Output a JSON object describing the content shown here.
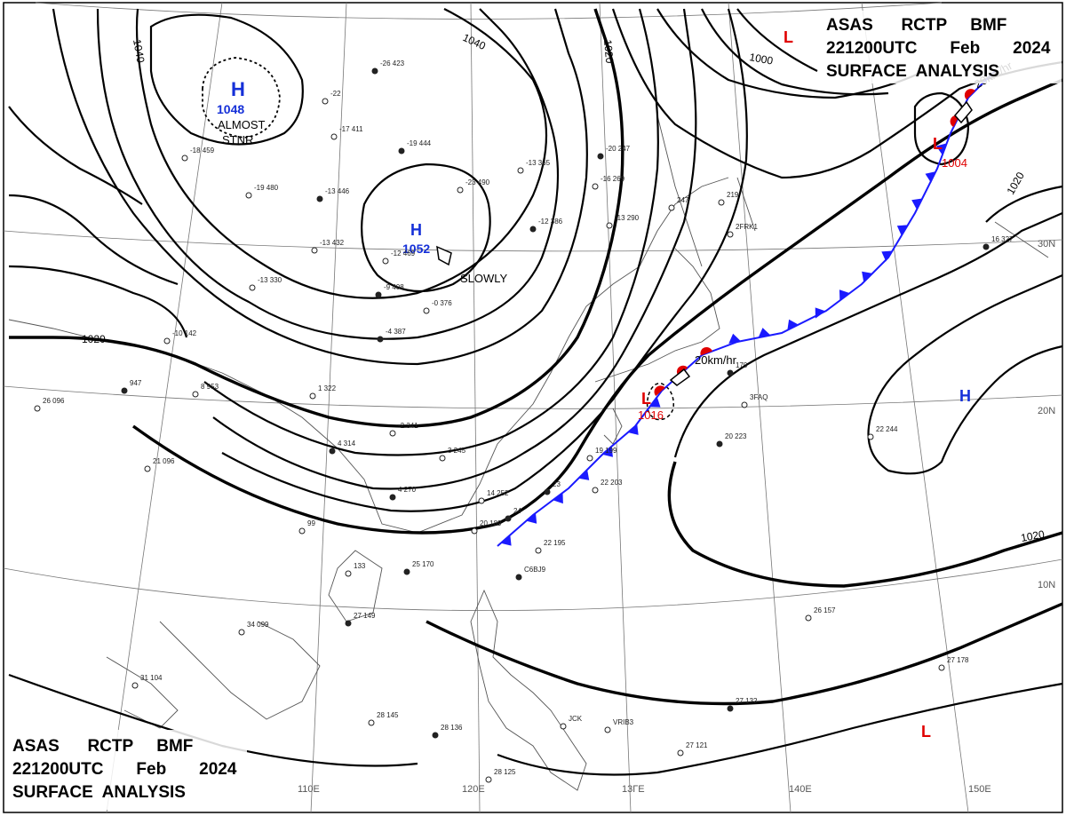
{
  "header": {
    "top": {
      "line1": "ASAS      RCTP     BMF",
      "line2": "221200UTC       Feb       2024",
      "line3": "SURFACE  ANALYSIS"
    },
    "bottom": {
      "line1": "ASAS      RCTP     BMF",
      "line2": "221200UTC       Feb       2024",
      "line3": "SURFACE  ANALYSIS"
    }
  },
  "isobar_labels": [
    "1040",
    "1040",
    "1020",
    "1020",
    "1000",
    "1020",
    "1020"
  ],
  "longitude_labels": [
    "110E",
    "120E",
    "13ГE",
    "140E",
    "150E"
  ],
  "latitude_labels": [
    "30N",
    "20N",
    "10N"
  ],
  "pressure_systems": {
    "highs": [
      {
        "letter": "H",
        "pressure": "1048",
        "note1": "ALMOST",
        "note2": "STNR"
      },
      {
        "letter": "H",
        "pressure": "1052",
        "note1": "SLOWLY"
      },
      {
        "letter": "H"
      }
    ],
    "lows": [
      {
        "letter": "L",
        "pressure": "1016",
        "motion": "20km/hr"
      },
      {
        "letter": "L",
        "pressure": "1004",
        "motion": "20km/hr"
      },
      {
        "letter": "L"
      },
      {
        "letter": "L"
      }
    ]
  },
  "observations": [
    "-26 423",
    "-22",
    "-17 411",
    "-19 444",
    "-18 459",
    "-19 480",
    "-13 446",
    "-13 432",
    "-12 469",
    "-9 408",
    "-23 490",
    "-13 365",
    "-12 386",
    "-16 269",
    "-13 290",
    "-20 247",
    "-13 330",
    "-10 142",
    "-4 387",
    "-0 376",
    "8 953",
    "947",
    "1 322",
    "-2 341",
    "4 314",
    "26 096",
    "21 096",
    "4 270",
    "3 245",
    "14 252",
    "24",
    "20 189",
    "99",
    "25 170",
    "133",
    "34 099",
    "27 149",
    "31 104",
    "28 145",
    "28 136",
    "28 125",
    "22 195",
    "23",
    "19 199",
    "22 203",
    "20 223",
    "22 244",
    "26 157",
    "27 132",
    "27 121",
    "27 178",
    "16 327",
    "247",
    "219",
    "170",
    "2FRK1",
    "3FAQ",
    "C6BJ9",
    "VRIB3",
    "JCK"
  ]
}
